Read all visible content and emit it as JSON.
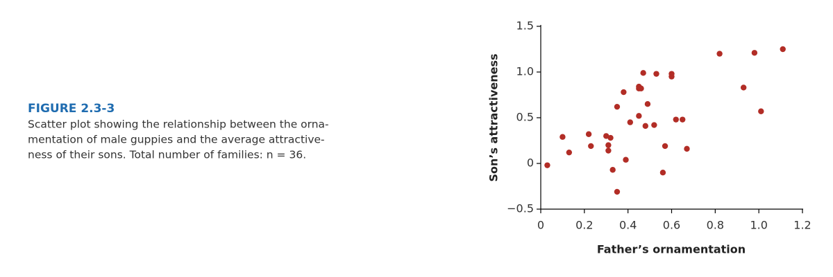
{
  "figure": {
    "label": "FIGURE 2.3-3",
    "caption_lines": [
      "Scatter plot showing the relationship between the orna-",
      "mentation of male guppies and the average attractive-",
      "ness of their sons. Total number of families: n = 36."
    ]
  },
  "chart_data": {
    "type": "scatter",
    "xlabel": "Father’s ornamentation",
    "ylabel": "Son’s attractiveness",
    "color": "#b22d26",
    "x": [
      0.03,
      0.1,
      0.13,
      0.22,
      0.23,
      0.3,
      0.31,
      0.32,
      0.31,
      0.33,
      0.35,
      0.35,
      0.38,
      0.39,
      0.41,
      0.45,
      0.45,
      0.46,
      0.45,
      0.47,
      0.48,
      0.49,
      0.52,
      0.53,
      0.57,
      0.56,
      0.6,
      0.6,
      0.62,
      0.65,
      0.67,
      0.82,
      0.93,
      0.98,
      1.01,
      1.11
    ],
    "values": [
      -0.02,
      0.29,
      0.12,
      0.32,
      0.19,
      0.3,
      0.2,
      0.28,
      0.14,
      -0.07,
      0.62,
      -0.31,
      0.78,
      0.04,
      0.45,
      0.82,
      0.84,
      0.82,
      0.52,
      0.99,
      0.41,
      0.65,
      0.42,
      0.98,
      0.19,
      -0.1,
      0.98,
      0.95,
      0.48,
      0.48,
      0.16,
      1.2,
      0.83,
      1.21,
      0.57,
      1.25
    ],
    "xlim": [
      0,
      1.2
    ],
    "ylim": [
      -0.5,
      1.5
    ],
    "xticks": [
      0,
      0.2,
      0.4,
      0.6,
      0.8,
      {
        "value": 1,
        "label": "1.0"
      },
      1.2
    ],
    "yticks": [
      {
        "value": -0.5,
        "label": "−0.5"
      },
      0,
      0.5,
      {
        "value": 1,
        "label": "1.0"
      },
      1.5
    ]
  }
}
